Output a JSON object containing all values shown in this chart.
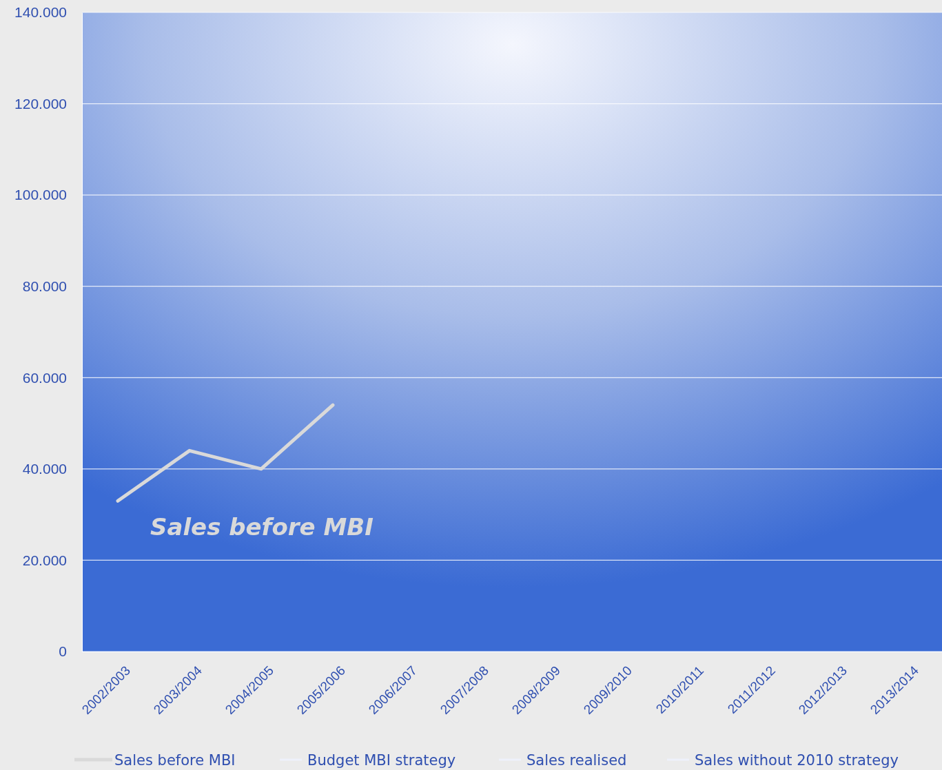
{
  "chart_data": {
    "type": "line",
    "categories": [
      "2002/2003",
      "2003/2004",
      "2004/2005",
      "2005/2006",
      "2006/2007",
      "2007/2008",
      "2008/2009",
      "2009/2010",
      "2010/2011",
      "2011/2012",
      "2012/2013",
      "2013/2014"
    ],
    "series": [
      {
        "name": "Sales before MBI",
        "color": "#d9d9d9",
        "values": [
          33000,
          44000,
          40000,
          54000,
          null,
          null,
          null,
          null,
          null,
          null,
          null,
          null
        ]
      },
      {
        "name": "Budget MBI strategy",
        "color": "#eef1fb",
        "values": [
          null,
          null,
          null,
          null,
          null,
          null,
          null,
          null,
          null,
          null,
          null,
          null
        ]
      },
      {
        "name": "Sales realised",
        "color": "#eef1fb",
        "values": [
          null,
          null,
          null,
          null,
          null,
          null,
          null,
          null,
          null,
          null,
          null,
          null
        ]
      },
      {
        "name": "Sales without 2010 strategy",
        "color": "#eef1fb",
        "values": [
          null,
          null,
          null,
          null,
          null,
          null,
          null,
          null,
          null,
          null,
          null,
          null
        ]
      }
    ],
    "ylim": [
      0,
      140000
    ],
    "yticks": [
      0,
      {
        "value": 20000,
        "label": "20.000"
      },
      {
        "value": 40000,
        "label": "40.000"
      },
      {
        "value": 60000,
        "label": "60.000"
      },
      {
        "value": 80000,
        "label": "80.000"
      },
      {
        "value": 100000,
        "label": "100.000"
      },
      {
        "value": 120000,
        "label": "120.000"
      },
      {
        "value": 140000,
        "label": "140.000"
      }
    ],
    "grid": "y",
    "legend": "bottom",
    "marker": "none",
    "line_style": "solid",
    "annotations": [
      "Sales before MBI"
    ]
  }
}
